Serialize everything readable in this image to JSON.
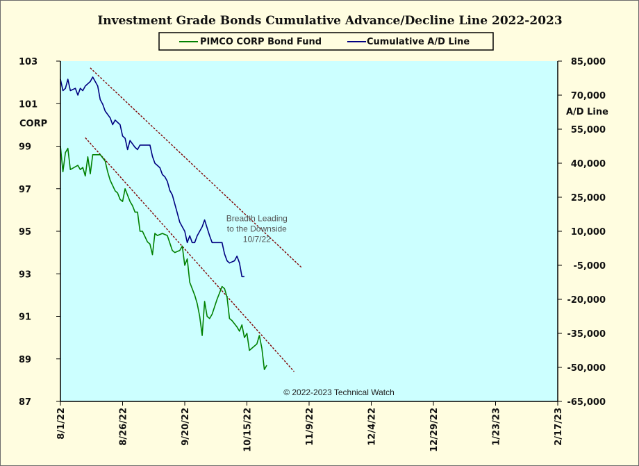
{
  "chart_data": {
    "type": "line",
    "title": "Investment Grade Bonds Cumulative Advance/Decline Line 2022-2023",
    "left_axis_label": "CORP",
    "right_axis_label": "A/D Line",
    "left_ylim": [
      87,
      103
    ],
    "left_ticks": [
      "87",
      "89",
      "91",
      "93",
      "95",
      "97",
      "99",
      "101",
      "103"
    ],
    "right_ylim": [
      -65000,
      85000
    ],
    "right_ticks": [
      "-65,000",
      "-50,000",
      "-35,000",
      "-20,000",
      "-5,000",
      "10,000",
      "25,000",
      "40,000",
      "55,000",
      "70,000",
      "85,000"
    ],
    "x_ticks": [
      "8/1/22",
      "8/26/22",
      "9/20/22",
      "10/15/22",
      "11/9/22",
      "12/4/22",
      "12/29/22",
      "1/23/23",
      "2/17/23"
    ],
    "x_range": [
      "2022-08-01",
      "2023-02-17"
    ],
    "legend_placement": "top-center",
    "background_color": "#ccffff",
    "frame_color": "#fffde0",
    "series": [
      {
        "name": "PIMCO CORP Bond Fund",
        "axis": "left",
        "color": "#008000",
        "points": [
          [
            "2022-08-01",
            99.0
          ],
          [
            "2022-08-02",
            97.8
          ],
          [
            "2022-08-03",
            98.7
          ],
          [
            "2022-08-04",
            98.9
          ],
          [
            "2022-08-05",
            97.9
          ],
          [
            "2022-08-08",
            98.1
          ],
          [
            "2022-08-09",
            97.9
          ],
          [
            "2022-08-10",
            98.0
          ],
          [
            "2022-08-11",
            97.6
          ],
          [
            "2022-08-12",
            98.5
          ],
          [
            "2022-08-13",
            97.7
          ],
          [
            "2022-08-14",
            98.6
          ],
          [
            "2022-08-17",
            98.6
          ],
          [
            "2022-08-19",
            98.3
          ],
          [
            "2022-08-20",
            97.8
          ],
          [
            "2022-08-21",
            97.4
          ],
          [
            "2022-08-23",
            96.9
          ],
          [
            "2022-08-24",
            96.8
          ],
          [
            "2022-08-25",
            96.5
          ],
          [
            "2022-08-26",
            96.4
          ],
          [
            "2022-08-27",
            97.0
          ],
          [
            "2022-08-29",
            96.4
          ],
          [
            "2022-08-30",
            96.2
          ],
          [
            "2022-08-31",
            95.9
          ],
          [
            "2022-09-01",
            95.9
          ],
          [
            "2022-09-02",
            95.0
          ],
          [
            "2022-09-03",
            95.0
          ],
          [
            "2022-09-05",
            94.5
          ],
          [
            "2022-09-06",
            94.4
          ],
          [
            "2022-09-07",
            93.9
          ],
          [
            "2022-09-08",
            94.9
          ],
          [
            "2022-09-09",
            94.8
          ],
          [
            "2022-09-11",
            94.9
          ],
          [
            "2022-09-13",
            94.8
          ],
          [
            "2022-09-15",
            94.1
          ],
          [
            "2022-09-16",
            94.0
          ],
          [
            "2022-09-18",
            94.1
          ],
          [
            "2022-09-19",
            94.3
          ],
          [
            "2022-09-20",
            93.4
          ],
          [
            "2022-09-21",
            93.7
          ],
          [
            "2022-09-22",
            92.6
          ],
          [
            "2022-09-24",
            92.0
          ],
          [
            "2022-09-25",
            91.6
          ],
          [
            "2022-09-26",
            91.0
          ],
          [
            "2022-09-27",
            90.1
          ],
          [
            "2022-09-28",
            91.7
          ],
          [
            "2022-09-29",
            91.0
          ],
          [
            "2022-09-30",
            90.9
          ],
          [
            "2022-10-01",
            91.1
          ],
          [
            "2022-10-03",
            91.8
          ],
          [
            "2022-10-05",
            92.4
          ],
          [
            "2022-10-06",
            92.3
          ],
          [
            "2022-10-07",
            91.9
          ],
          [
            "2022-10-08",
            90.9
          ],
          [
            "2022-10-09",
            90.8
          ],
          [
            "2022-10-11",
            90.5
          ],
          [
            "2022-10-12",
            90.3
          ],
          [
            "2022-10-13",
            90.6
          ],
          [
            "2022-10-14",
            90.0
          ],
          [
            "2022-10-15",
            90.2
          ],
          [
            "2022-10-16",
            89.4
          ],
          [
            "2022-10-18",
            89.6
          ],
          [
            "2022-10-19",
            89.7
          ],
          [
            "2022-10-20",
            90.1
          ],
          [
            "2022-10-21",
            89.5
          ],
          [
            "2022-10-22",
            88.5
          ],
          [
            "2022-10-23",
            88.7
          ]
        ]
      },
      {
        "name": "Cumulative A/D Line",
        "axis": "right",
        "color": "#000080",
        "points": [
          [
            "2022-08-01",
            77000
          ],
          [
            "2022-08-02",
            72000
          ],
          [
            "2022-08-03",
            73000
          ],
          [
            "2022-08-04",
            77000
          ],
          [
            "2022-08-05",
            72000
          ],
          [
            "2022-08-07",
            73000
          ],
          [
            "2022-08-08",
            70000
          ],
          [
            "2022-08-09",
            73000
          ],
          [
            "2022-08-10",
            72000
          ],
          [
            "2022-08-11",
            74000
          ],
          [
            "2022-08-13",
            76000
          ],
          [
            "2022-08-14",
            78000
          ],
          [
            "2022-08-15",
            76000
          ],
          [
            "2022-08-16",
            74000
          ],
          [
            "2022-08-17",
            68000
          ],
          [
            "2022-08-18",
            66000
          ],
          [
            "2022-08-19",
            63000
          ],
          [
            "2022-08-21",
            60000
          ],
          [
            "2022-08-22",
            57000
          ],
          [
            "2022-08-23",
            59000
          ],
          [
            "2022-08-25",
            57000
          ],
          [
            "2022-08-26",
            52000
          ],
          [
            "2022-08-27",
            51000
          ],
          [
            "2022-08-28",
            46000
          ],
          [
            "2022-08-29",
            50000
          ],
          [
            "2022-08-31",
            47000
          ],
          [
            "2022-09-01",
            46000
          ],
          [
            "2022-09-02",
            48000
          ],
          [
            "2022-09-04",
            48000
          ],
          [
            "2022-09-06",
            48000
          ],
          [
            "2022-09-07",
            43000
          ],
          [
            "2022-09-08",
            40000
          ],
          [
            "2022-09-10",
            38000
          ],
          [
            "2022-09-11",
            35000
          ],
          [
            "2022-09-12",
            34000
          ],
          [
            "2022-09-13",
            32000
          ],
          [
            "2022-09-14",
            28000
          ],
          [
            "2022-09-15",
            26000
          ],
          [
            "2022-09-16",
            22000
          ],
          [
            "2022-09-17",
            18000
          ],
          [
            "2022-09-18",
            14000
          ],
          [
            "2022-09-19",
            12000
          ],
          [
            "2022-09-20",
            10000
          ],
          [
            "2022-09-21",
            5000
          ],
          [
            "2022-09-22",
            8000
          ],
          [
            "2022-09-23",
            5000
          ],
          [
            "2022-09-24",
            5000
          ],
          [
            "2022-09-25",
            8000
          ],
          [
            "2022-09-27",
            12000
          ],
          [
            "2022-09-28",
            15000
          ],
          [
            "2022-09-30",
            8000
          ],
          [
            "2022-10-01",
            5000
          ],
          [
            "2022-10-02",
            5000
          ],
          [
            "2022-10-05",
            5000
          ],
          [
            "2022-10-06",
            0
          ],
          [
            "2022-10-07",
            -3000
          ],
          [
            "2022-10-08",
            -4000
          ],
          [
            "2022-10-10",
            -3000
          ],
          [
            "2022-10-11",
            -1000
          ],
          [
            "2022-10-12",
            -4000
          ],
          [
            "2022-10-13",
            -10000
          ],
          [
            "2022-10-14",
            -10000
          ]
        ]
      }
    ],
    "trendlines": [
      {
        "axis": "right",
        "color": "#800000",
        "from": [
          "2022-08-13",
          82000
        ],
        "to": [
          "2022-11-06",
          -6000
        ]
      },
      {
        "axis": "left",
        "color": "#800000",
        "from": [
          "2022-08-11",
          99.4
        ],
        "to": [
          "2022-11-03",
          88.4
        ]
      }
    ],
    "annotations": [
      {
        "lines": [
          "Breadth Leading",
          "to the Downside",
          "10/7/22"
        ],
        "anchor": [
          "2022-10-19",
          14500
        ],
        "axis": "right"
      }
    ],
    "copyright": "© 2022-2023  Technical  Watch"
  }
}
